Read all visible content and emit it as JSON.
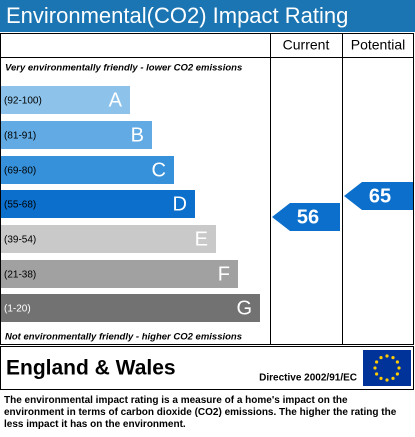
{
  "header": {
    "title": "Environmental(CO2) Impact Rating"
  },
  "columns": {
    "current": "Current",
    "potential": "Potential"
  },
  "top_note": "Very environmentally friendly - lower CO2 emissions",
  "bottom_note": "Not environmentally friendly - higher CO2 emissions",
  "bands": [
    {
      "range": "(92-100)",
      "letter": "A",
      "color": "#8dc3ea"
    },
    {
      "range": "(81-91)",
      "letter": "B",
      "color": "#62aae3"
    },
    {
      "range": "(69-80)",
      "letter": "C",
      "color": "#3691da"
    },
    {
      "range": "(55-68)",
      "letter": "D",
      "color": "#0b6fcb"
    },
    {
      "range": "(39-54)",
      "letter": "E",
      "color": "#c9c9c9"
    },
    {
      "range": "(21-38)",
      "letter": "F",
      "color": "#a1a1a1"
    },
    {
      "range": "(1-20)",
      "letter": "G",
      "color": "#727272"
    }
  ],
  "current": 56,
  "potential": 65,
  "footer": {
    "region": "England & Wales",
    "directive": "Directive 2002/91/EC"
  },
  "description": "The environmental impact rating is a measure of a home's impact on the environment in terms of carbon dioxide (CO2) emissions. The higher the rating the less impact it has on the environment."
}
